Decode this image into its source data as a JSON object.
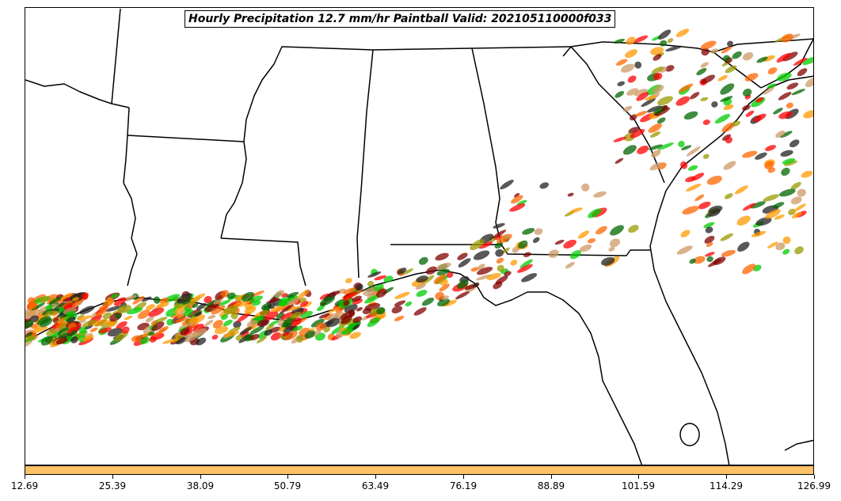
{
  "title": "Hourly Precipitation 12.7 mm/hr Paintball Valid: 202105110000f033",
  "colorbar": {
    "color": "#ffc266",
    "min": 12.69,
    "max": 126.99,
    "ticks": [
      "12.69",
      "25.39",
      "38.09",
      "50.79",
      "63.49",
      "76.19",
      "88.89",
      "101.59",
      "114.29",
      "126.99"
    ]
  },
  "map": {
    "region": "southeastern-united-states",
    "ensemble_colors": [
      "#ff0000",
      "#ff6600",
      "#ff9900",
      "#00cc00",
      "#006600",
      "#999900",
      "#800000",
      "#222222",
      "#cc9966"
    ]
  }
}
